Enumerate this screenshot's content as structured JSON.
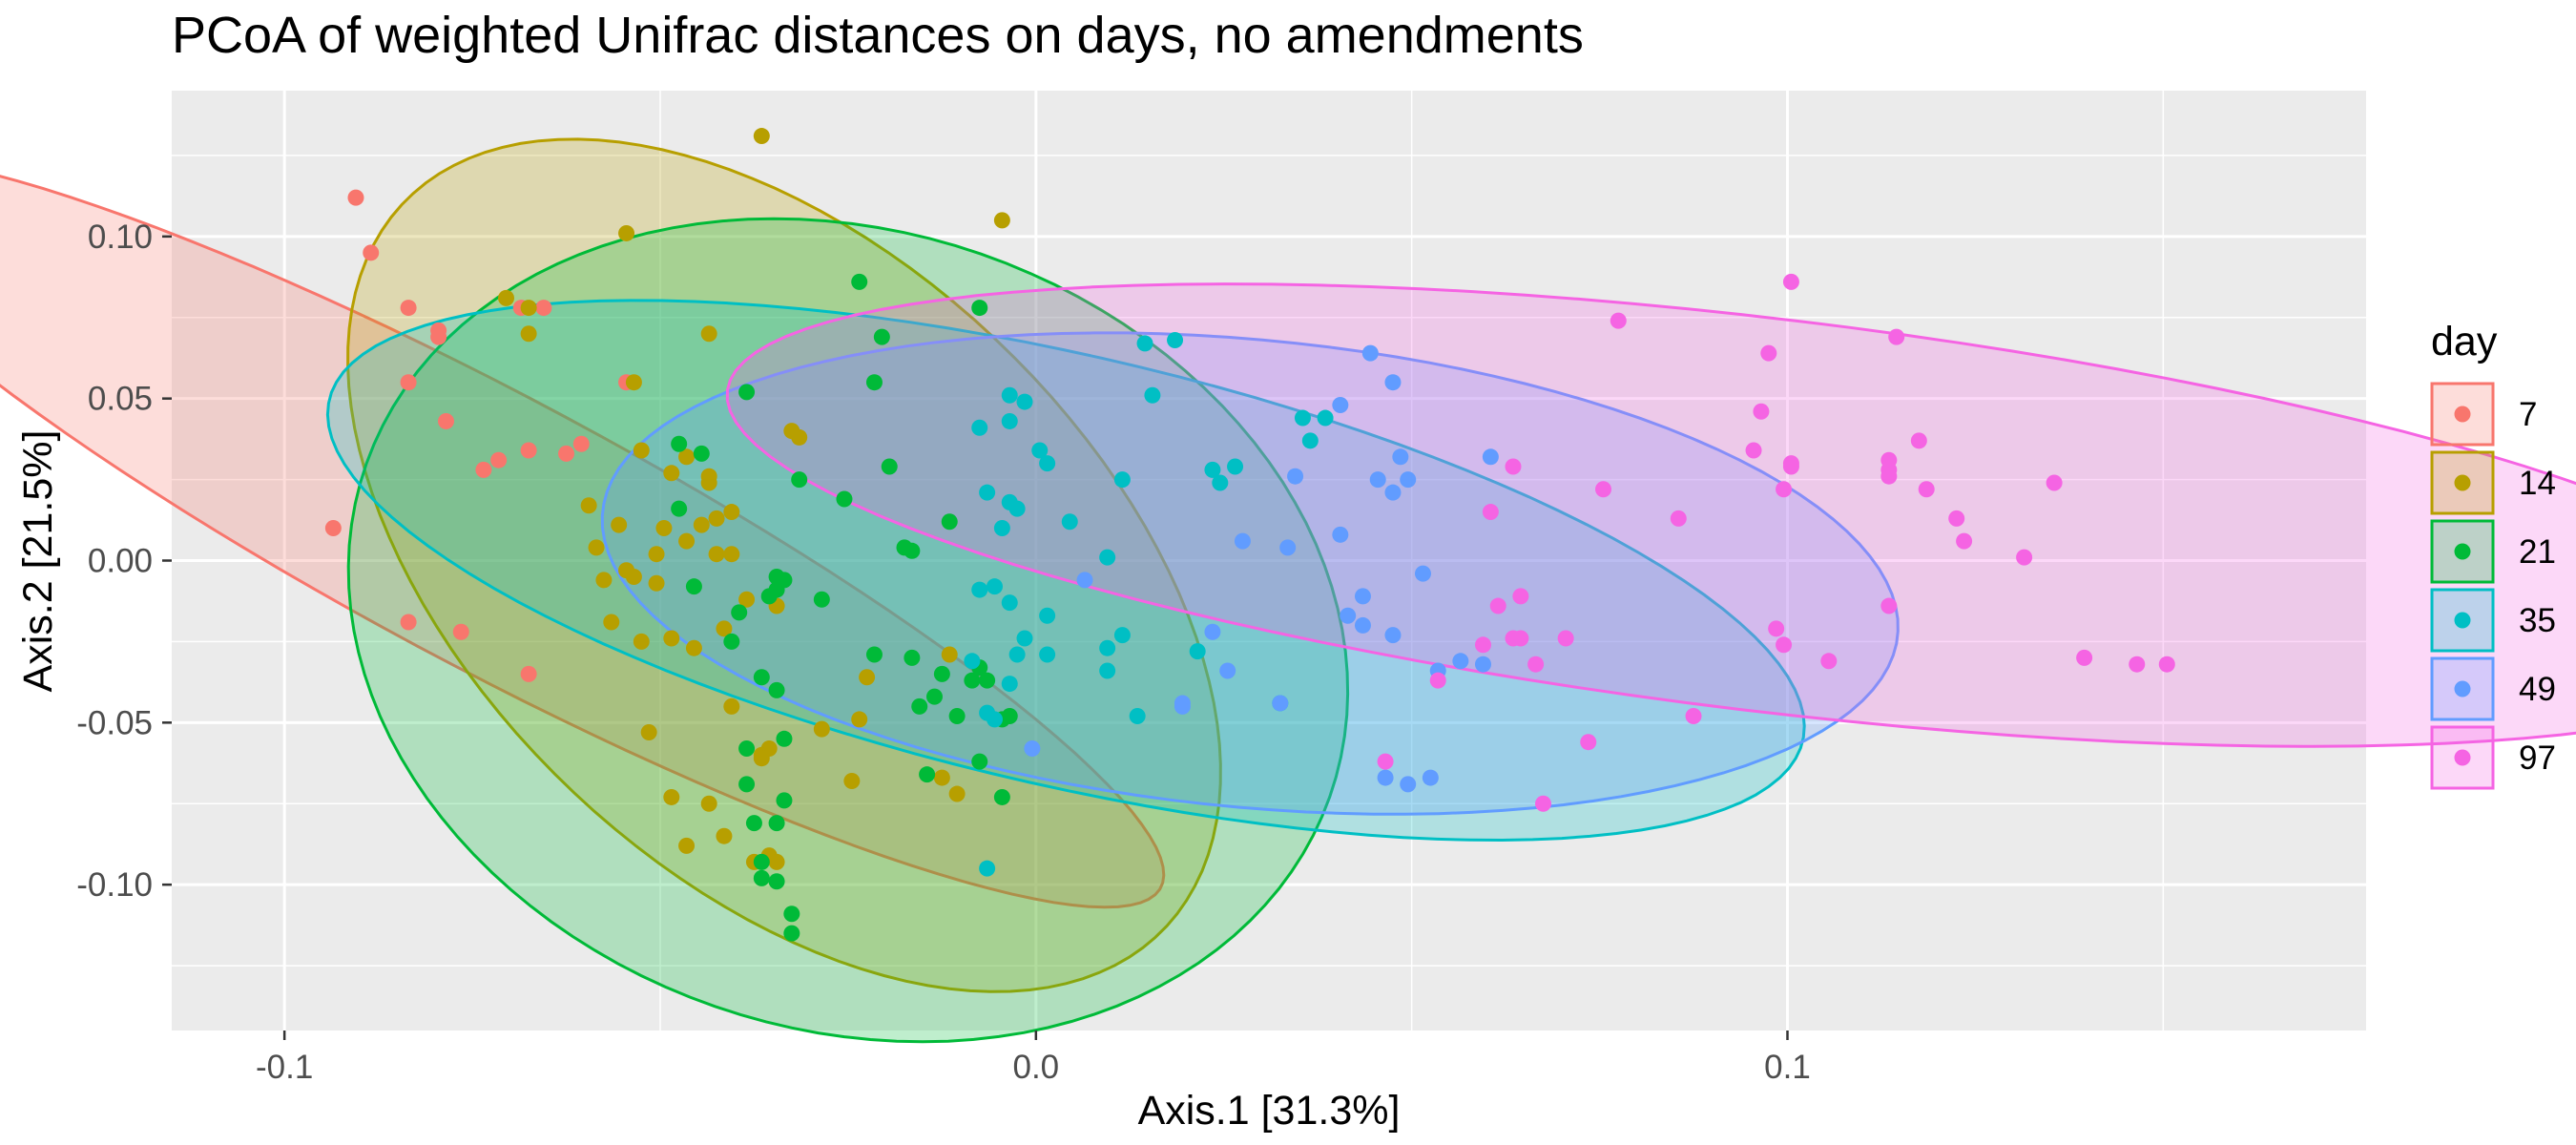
{
  "chart_data": {
    "type": "scatter",
    "title": "PCoA of weighted Unifrac distances on days, no amendments",
    "xlabel": "Axis.1   [31.3%]",
    "ylabel": "Axis.2   [21.5%]",
    "xlim": [
      -0.115,
      0.177
    ],
    "ylim": [
      -0.145,
      0.145
    ],
    "x_ticks": [
      {
        "value": -0.1,
        "label": "-0.1"
      },
      {
        "value": 0.0,
        "label": "0.0"
      },
      {
        "value": 0.1,
        "label": "0.1"
      }
    ],
    "y_ticks": [
      {
        "value": 0.1,
        "label": "0.10"
      },
      {
        "value": 0.05,
        "label": "0.05"
      },
      {
        "value": 0.0,
        "label": "0.00"
      },
      {
        "value": -0.05,
        "label": "-0.05"
      },
      {
        "value": -0.1,
        "label": "-0.10"
      }
    ],
    "grid": true,
    "legend": {
      "title": "day",
      "position": "right"
    },
    "series": [
      {
        "name": "7",
        "color": "#F8766D",
        "ellipse": {
          "cx": -0.0725,
          "cy": 0.009,
          "a": 0.1435,
          "b": 0.0295,
          "angle_deg": -53
        },
        "x": [
          -0.0905,
          -0.0885,
          -0.0835,
          -0.0795,
          -0.0795,
          -0.0835,
          -0.0685,
          -0.0655,
          -0.0605,
          -0.0545,
          -0.0785,
          -0.0735,
          -0.0715,
          -0.0675,
          -0.0625,
          -0.0935,
          -0.0835,
          -0.0765,
          -0.0675
        ],
        "y": [
          0.112,
          0.095,
          0.078,
          0.071,
          0.069,
          0.055,
          0.078,
          0.078,
          0.036,
          0.055,
          0.043,
          0.028,
          0.031,
          0.034,
          0.033,
          0.01,
          -0.019,
          -0.022,
          -0.035
        ]
      },
      {
        "name": "14",
        "color": "#B79F00",
        "ellipse": {
          "cx": -0.0335,
          "cy": -0.0015,
          "a": 0.135,
          "b": 0.0495,
          "angle_deg": -76
        },
        "x": [
          -0.0365,
          -0.0545,
          -0.0045,
          -0.0705,
          -0.0675,
          -0.0675,
          -0.0535,
          -0.0525,
          -0.0465,
          -0.0435,
          -0.0325,
          -0.0315,
          -0.0555,
          -0.0595,
          -0.0485,
          -0.0435,
          -0.0405,
          -0.0435,
          -0.0575,
          -0.0545,
          -0.0505,
          -0.0495,
          -0.0445,
          -0.0425,
          -0.0425,
          -0.0585,
          -0.0535,
          -0.0505,
          -0.0465,
          -0.0405,
          -0.0385,
          -0.0565,
          -0.0525,
          -0.0485,
          -0.0455,
          -0.0415,
          -0.0345,
          -0.0405,
          -0.0355,
          -0.0285,
          -0.0515,
          -0.0365,
          -0.0245,
          -0.0485,
          -0.0435,
          -0.0365,
          -0.0465,
          -0.0415,
          -0.0355,
          -0.0375,
          -0.0345,
          -0.0125,
          -0.0105,
          -0.0235,
          -0.0225,
          -0.0115
        ],
        "y": [
          0.131,
          0.101,
          0.105,
          0.081,
          0.078,
          0.07,
          0.055,
          0.034,
          0.032,
          0.07,
          0.04,
          0.038,
          0.011,
          0.017,
          0.027,
          0.026,
          0.015,
          0.024,
          -0.006,
          -0.003,
          0.002,
          0.01,
          0.011,
          0.013,
          0.002,
          0.004,
          -0.005,
          -0.007,
          0.006,
          0.002,
          -0.012,
          -0.019,
          -0.025,
          -0.024,
          -0.027,
          -0.021,
          -0.014,
          -0.045,
          -0.058,
          -0.052,
          -0.053,
          -0.06,
          -0.068,
          -0.073,
          -0.075,
          -0.061,
          -0.088,
          -0.085,
          -0.091,
          -0.093,
          -0.093,
          -0.067,
          -0.072,
          -0.049,
          -0.036,
          -0.029
        ]
      },
      {
        "name": "21",
        "color": "#00BA38",
        "ellipse": {
          "cx": -0.025,
          "cy": -0.0215,
          "a": 0.1275,
          "b": 0.0655,
          "angle_deg": -84
        },
        "x": [
          -0.0235,
          -0.0075,
          -0.0205,
          -0.0475,
          -0.0445,
          -0.0385,
          -0.0215,
          -0.0195,
          -0.0315,
          -0.0475,
          -0.0255,
          -0.0115,
          -0.0175,
          -0.0165,
          -0.0455,
          -0.0345,
          -0.0335,
          -0.0345,
          -0.0355,
          -0.0285,
          -0.0395,
          -0.0405,
          -0.0365,
          -0.0385,
          -0.0385,
          -0.0335,
          -0.0215,
          -0.0165,
          -0.0125,
          -0.0085,
          -0.0065,
          -0.0155,
          -0.0135,
          -0.0105,
          -0.0045,
          -0.0345,
          -0.0375,
          -0.0365,
          -0.0345,
          -0.0325,
          -0.0325,
          -0.0145,
          -0.0075,
          -0.0045,
          -0.0365,
          -0.0345,
          -0.0335,
          -0.0035,
          -0.0075
        ],
        "y": [
          0.086,
          0.078,
          0.069,
          0.036,
          0.033,
          0.052,
          0.055,
          0.029,
          0.025,
          0.016,
          0.019,
          0.012,
          0.004,
          0.003,
          -0.008,
          -0.005,
          -0.006,
          -0.009,
          -0.011,
          -0.012,
          -0.016,
          -0.025,
          -0.036,
          -0.058,
          -0.069,
          -0.074,
          -0.029,
          -0.03,
          -0.035,
          -0.037,
          -0.037,
          -0.045,
          -0.042,
          -0.048,
          -0.049,
          -0.081,
          -0.081,
          -0.093,
          -0.099,
          -0.109,
          -0.115,
          -0.066,
          -0.062,
          -0.073,
          -0.098,
          -0.04,
          -0.055,
          -0.048,
          -0.033
        ]
      },
      {
        "name": "35",
        "color": "#00BFC4",
        "ellipse": {
          "cx": 0.004,
          "cy": -0.003,
          "a": 0.115,
          "b": 0.058,
          "angle_deg": -37
        },
        "x": [
          0.0145,
          0.0185,
          -0.0035,
          0.0355,
          0.0385,
          0.0365,
          0.0265,
          0.0235,
          0.0245,
          0.0155,
          0.0115,
          -0.0035,
          0.0015,
          -0.0015,
          0.0005,
          -0.0075,
          -0.0065,
          -0.0035,
          -0.0025,
          -0.0045,
          0.0045,
          0.0095,
          0.0115,
          0.0215,
          0.0325,
          0.0135,
          0.0015,
          -0.0035,
          -0.0055,
          -0.0075,
          -0.0015,
          -0.0085,
          -0.0025,
          -0.0035,
          0.0095,
          0.0095,
          0.0015,
          -0.0065,
          -0.0055,
          -0.0065
        ],
        "y": [
          0.067,
          0.068,
          0.051,
          0.044,
          0.044,
          0.037,
          0.029,
          0.028,
          0.024,
          0.051,
          0.025,
          0.043,
          0.03,
          0.049,
          0.034,
          0.041,
          0.021,
          0.018,
          0.016,
          0.01,
          0.012,
          0.001,
          -0.023,
          -0.028,
          -0.044,
          -0.048,
          -0.017,
          -0.013,
          -0.008,
          -0.009,
          -0.024,
          -0.031,
          -0.029,
          -0.038,
          -0.027,
          -0.034,
          -0.029,
          -0.047,
          -0.049,
          -0.095
        ]
      },
      {
        "name": "49",
        "color": "#619CFF",
        "ellipse": {
          "cx": 0.0285,
          "cy": -0.004,
          "a": 0.0905,
          "b": 0.069,
          "angle_deg": -28
        },
        "x": [
          0.0445,
          0.0475,
          0.0405,
          0.0485,
          0.0495,
          0.0605,
          0.0455,
          0.0475,
          0.0345,
          0.0275,
          0.0335,
          0.0405,
          0.0235,
          0.0195,
          0.0435,
          0.0415,
          0.0475,
          0.0515,
          0.0565,
          0.0595,
          0.0535,
          0.0435,
          0.0465,
          0.0495,
          0.0525,
          0.0255,
          0.0325,
          0.0195,
          0.0065,
          -0.0005
        ],
        "y": [
          0.064,
          0.055,
          0.048,
          0.032,
          0.025,
          0.032,
          0.025,
          0.021,
          0.026,
          0.006,
          0.004,
          0.008,
          -0.022,
          -0.044,
          -0.02,
          -0.017,
          -0.023,
          -0.004,
          -0.031,
          -0.032,
          -0.034,
          -0.011,
          -0.067,
          -0.069,
          -0.067,
          -0.034,
          -0.044,
          -0.045,
          -0.006,
          -0.058
        ]
      },
      {
        "name": "97",
        "color": "#F564E3",
        "ellipse": {
          "cx": 0.0975,
          "cy": 0.014,
          "a": 0.1445,
          "b": 0.0585,
          "angle_deg": -18
        },
        "x": [
          0.1005,
          0.1145,
          0.0775,
          0.0975,
          0.1005,
          0.0965,
          0.0955,
          0.1005,
          0.0995,
          0.0855,
          0.0755,
          0.0635,
          0.0605,
          0.1135,
          0.1135,
          0.1135,
          0.1175,
          0.1185,
          0.1225,
          0.1235,
          0.1355,
          0.1315,
          0.1395,
          0.1465,
          0.1505,
          0.1135,
          0.0985,
          0.0995,
          0.1055,
          0.0875,
          0.0645,
          0.0595,
          0.0615,
          0.0635,
          0.0645,
          0.0705,
          0.0665,
          0.0535,
          0.0465,
          0.0735,
          0.0675
        ],
        "y": [
          0.086,
          0.069,
          0.074,
          0.064,
          0.029,
          0.046,
          0.034,
          0.03,
          0.022,
          0.013,
          0.022,
          0.029,
          0.015,
          0.031,
          0.026,
          0.028,
          0.037,
          0.022,
          0.013,
          0.006,
          0.024,
          0.001,
          -0.03,
          -0.032,
          -0.032,
          -0.014,
          -0.021,
          -0.026,
          -0.031,
          -0.048,
          -0.011,
          -0.026,
          -0.014,
          -0.024,
          -0.024,
          -0.024,
          -0.032,
          -0.037,
          -0.062,
          -0.056,
          -0.075
        ]
      }
    ]
  }
}
